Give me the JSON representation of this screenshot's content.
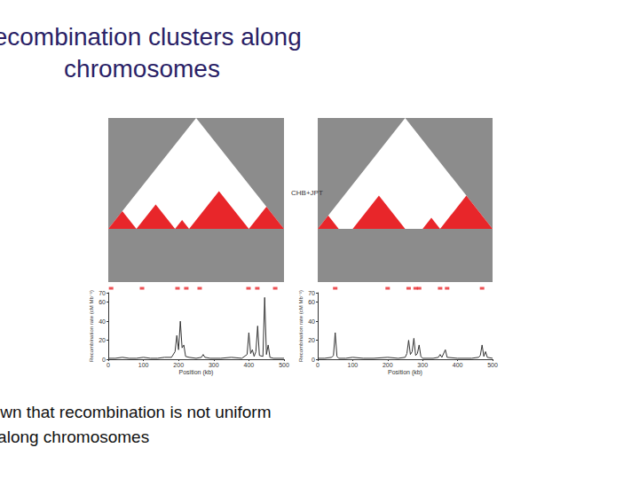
{
  "title": "Recombination clusters along chromosomes",
  "caption": "Studies have shown that recombination is not uniform along chromosomes",
  "chart_data": [
    {
      "type": "line",
      "annotation": "CHB+JPT",
      "x_label": "Position (kb)",
      "y_label": "Recombination rate (cM Mb⁻¹)",
      "x": [
        0,
        20,
        40,
        60,
        80,
        100,
        120,
        140,
        160,
        180,
        190,
        195,
        200,
        205,
        210,
        215,
        220,
        230,
        250,
        265,
        270,
        275,
        290,
        320,
        350,
        380,
        395,
        400,
        405,
        410,
        415,
        420,
        425,
        430,
        440,
        445,
        450,
        455,
        460,
        470,
        490,
        500
      ],
      "values": [
        1,
        1,
        2,
        1,
        1,
        2,
        1,
        1,
        2,
        2,
        8,
        25,
        10,
        40,
        12,
        15,
        3,
        2,
        1,
        2,
        5,
        2,
        1,
        1,
        2,
        1,
        5,
        28,
        6,
        10,
        3,
        8,
        35,
        4,
        3,
        65,
        5,
        15,
        2,
        1,
        1,
        1
      ],
      "color": "#333333",
      "xlim": [
        0,
        500
      ],
      "xticks": [
        0,
        100,
        200,
        300,
        400,
        500
      ],
      "ylim": [
        0,
        70
      ],
      "yticks": [
        0,
        20,
        40,
        60
      ],
      "ld_blocks": [
        [
          0,
          80
        ],
        [
          80,
          190
        ],
        [
          190,
          230
        ],
        [
          230,
          400
        ],
        [
          400,
          500
        ]
      ],
      "hotspots": [
        8,
        96,
        197,
        222,
        260,
        399,
        424,
        475
      ]
    },
    {
      "type": "line",
      "x_label": "Position (kb)",
      "y_label": "Recombination rate (cM Mb⁻¹)",
      "x": [
        0,
        20,
        40,
        45,
        50,
        55,
        60,
        80,
        100,
        130,
        160,
        200,
        230,
        250,
        255,
        260,
        265,
        270,
        275,
        280,
        285,
        290,
        295,
        300,
        330,
        345,
        350,
        355,
        365,
        370,
        400,
        440,
        460,
        465,
        470,
        475,
        480,
        485,
        500
      ],
      "values": [
        1,
        1,
        2,
        4,
        28,
        3,
        1,
        1,
        2,
        1,
        1,
        2,
        1,
        2,
        6,
        20,
        5,
        8,
        22,
        4,
        6,
        15,
        3,
        1,
        1,
        2,
        5,
        2,
        10,
        2,
        1,
        1,
        2,
        4,
        15,
        3,
        8,
        2,
        1
      ],
      "color": "#333333",
      "xlim": [
        0,
        500
      ],
      "xticks": [
        0,
        100,
        200,
        300,
        400,
        500
      ],
      "ylim": [
        0,
        70
      ],
      "yticks": [
        0,
        20,
        40,
        60
      ],
      "ld_blocks": [
        [
          0,
          60
        ],
        [
          100,
          250
        ],
        [
          300,
          350
        ],
        [
          350,
          500
        ]
      ],
      "hotspots": [
        50,
        200,
        260,
        280,
        290,
        350,
        370,
        470
      ]
    }
  ]
}
